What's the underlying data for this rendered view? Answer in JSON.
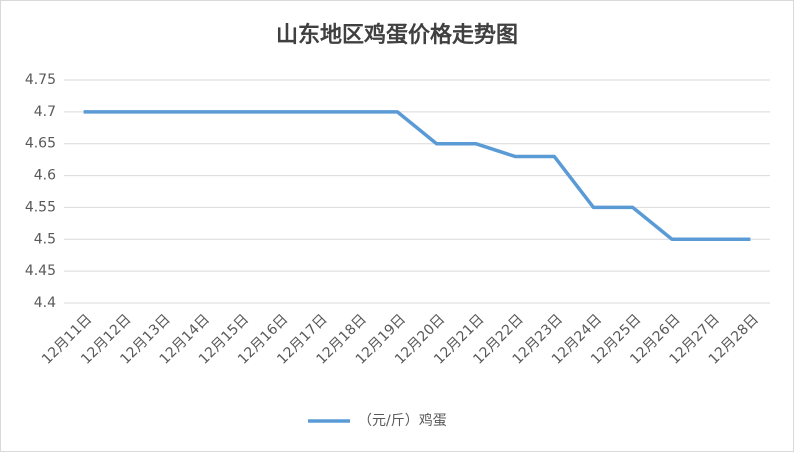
{
  "chart_data": {
    "type": "line",
    "title": "山东地区鸡蛋价格走势图",
    "categories": [
      "12月11日",
      "12月12日",
      "12月13日",
      "12月14日",
      "12月15日",
      "12月16日",
      "12月17日",
      "12月18日",
      "12月19日",
      "12月20日",
      "12月21日",
      "12月22日",
      "12月23日",
      "12月24日",
      "12月25日",
      "12月26日",
      "12月27日",
      "12月28日"
    ],
    "series": [
      {
        "name": "（元/斤）鸡蛋",
        "color": "#5b9bd5",
        "values": [
          4.7,
          4.7,
          4.7,
          4.7,
          4.7,
          4.7,
          4.7,
          4.7,
          4.7,
          4.65,
          4.65,
          4.63,
          4.63,
          4.55,
          4.55,
          4.5,
          4.5,
          4.5
        ]
      }
    ],
    "ylim": [
      4.4,
      4.75
    ],
    "yticks": [
      4.4,
      4.45,
      4.5,
      4.55,
      4.6,
      4.65,
      4.7,
      4.75
    ],
    "grid": true,
    "legend": "bottom"
  }
}
